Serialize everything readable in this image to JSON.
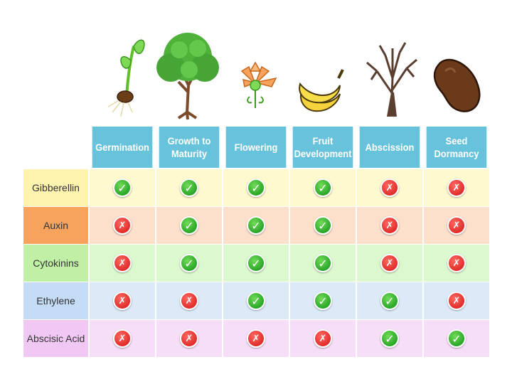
{
  "columns": [
    "Germination",
    "Growth to Maturity",
    "Flowering",
    "Fruit Development",
    "Abscission",
    "Seed Dormancy"
  ],
  "rows": [
    {
      "label": "Gibberellin",
      "values": [
        true,
        true,
        true,
        true,
        false,
        false
      ],
      "label_bg": "#fff3b0",
      "cell_bg": "#fff9cf"
    },
    {
      "label": "Auxin",
      "values": [
        false,
        true,
        true,
        true,
        false,
        false
      ],
      "label_bg": "#f7a35e",
      "cell_bg": "#fde0cc"
    },
    {
      "label": "Cytokinins",
      "values": [
        false,
        true,
        true,
        true,
        false,
        false
      ],
      "label_bg": "#bff0a5",
      "cell_bg": "#dcf8cf"
    },
    {
      "label": "Ethylene",
      "values": [
        false,
        false,
        true,
        true,
        true,
        false
      ],
      "label_bg": "#c4dcf5",
      "cell_bg": "#dceaf8"
    },
    {
      "label": "Abscisic Acid",
      "values": [
        false,
        false,
        false,
        false,
        true,
        true
      ],
      "label_bg": "#f1c8f4",
      "cell_bg": "#f6def8"
    }
  ],
  "colors": {
    "header": "#67c2dc",
    "check": "#2aa629",
    "cross": "#e12c2b"
  },
  "icons": [
    "seedling-icon",
    "tree-icon",
    "flower-icon",
    "banana-icon",
    "bare-tree-icon",
    "seed-icon"
  ]
}
